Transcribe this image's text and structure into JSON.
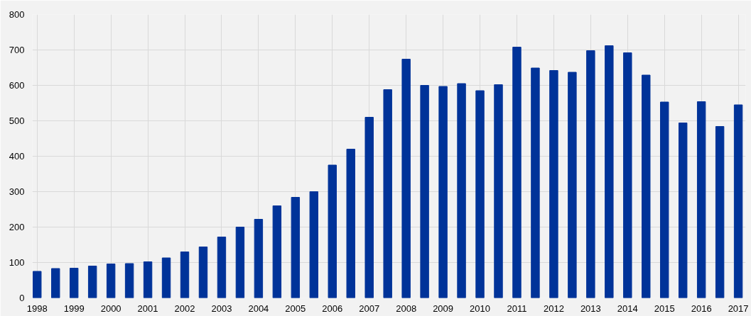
{
  "chart_data": {
    "type": "bar",
    "x": [
      1998,
      1998.5,
      1999,
      1999.5,
      2000,
      2000.5,
      2001,
      2001.5,
      2002,
      2002.5,
      2003,
      2003.5,
      2004,
      2004.5,
      2005,
      2005.5,
      2006,
      2006.5,
      2007,
      2007.5,
      2008,
      2008.5,
      2009,
      2009.5,
      2010,
      2010.5,
      2011,
      2011.5,
      2012,
      2012.5,
      2013,
      2013.5,
      2014,
      2014.5,
      2015,
      2015.5,
      2016,
      2016.5,
      2017
    ],
    "values": [
      75,
      83,
      84,
      90,
      96,
      97,
      102,
      113,
      130,
      144,
      172,
      200,
      222,
      260,
      284,
      300,
      375,
      420,
      510,
      588,
      674,
      600,
      597,
      605,
      585,
      602,
      708,
      649,
      642,
      637,
      698,
      712,
      692,
      629,
      553,
      494,
      554,
      484,
      545
    ],
    "color": "#003399",
    "xlim": [
      1997.87,
      2017.2
    ],
    "xticks": [
      1998,
      1999,
      2000,
      2001,
      2002,
      2003,
      2004,
      2005,
      2006,
      2007,
      2008,
      2009,
      2010,
      2011,
      2012,
      2013,
      2014,
      2015,
      2016,
      2017
    ],
    "ylim": [
      0,
      800
    ],
    "yticks": [
      0,
      100,
      200,
      300,
      400,
      500,
      600,
      700,
      800
    ],
    "grid": true
  }
}
